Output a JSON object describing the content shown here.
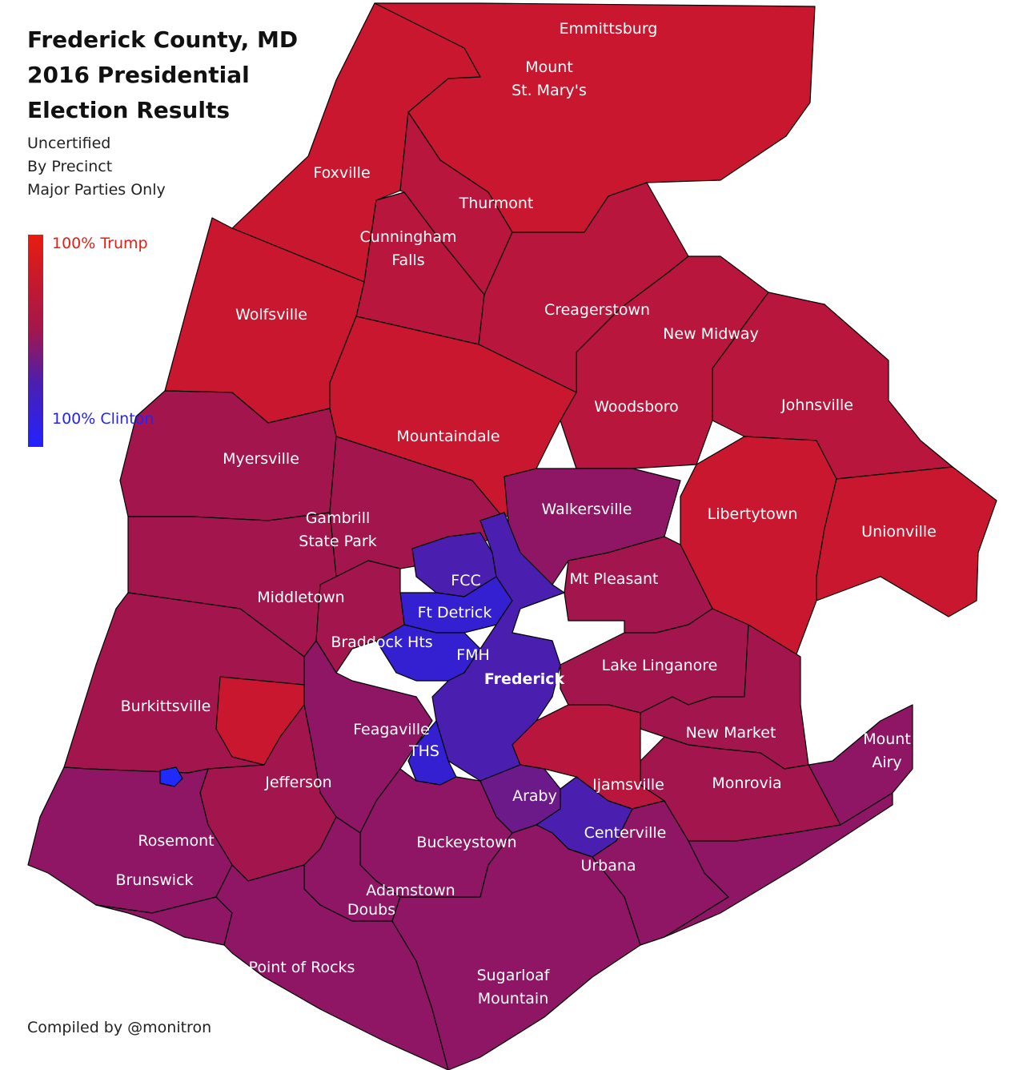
{
  "title": "Frederick County, MD\n2016 Presidential\nElection Results",
  "subtitle": "Uncertified\nBy Precinct\nMajor Parties Only",
  "legend": {
    "top_label": "100%\nTrump",
    "bottom_label": "100%\nClinton",
    "top_color": "#e81c10",
    "bottom_color": "#2222ff"
  },
  "credit": "Compiled by @monitron",
  "colors": {
    "strong_trump": "#c8172f",
    "trump": "#b8163c",
    "lean_trump": "#a3164d",
    "mixed": "#8e1664",
    "lean_clinton": "#6c1a8a",
    "clinton": "#4a1fb0",
    "strong_clinton": "#3420d0",
    "max_clinton": "#1f2aff"
  },
  "precinct_labels": [
    "Emmittsburg",
    "Mount\nSt. Mary's",
    "Foxville",
    "Thurmont",
    "Cunningham\nFalls",
    "Wolfsville",
    "Creagerstown",
    "New Midway",
    "Woodsboro",
    "Johnsville",
    "Mountaindale",
    "Myersville",
    "Walkersville",
    "Libertytown",
    "Unionville",
    "Gambrill\nState Park",
    "FCC",
    "Mt Pleasant",
    "Middletown",
    "Ft Detrick",
    "Braddock Hts",
    "FMH",
    "Frederick",
    "Lake Linganore",
    "Burkittsville",
    "Feagaville",
    "New Market",
    "Mount\nAiry",
    "THS",
    "Jefferson",
    "Monrovia",
    "Ijamsville",
    "Araby",
    "Rosemont",
    "Centerville",
    "Buckeystown",
    "Urbana",
    "Brunswick",
    "Adamstown",
    "Doubs",
    "Point of Rocks",
    "Sugarloaf\nMountain"
  ]
}
